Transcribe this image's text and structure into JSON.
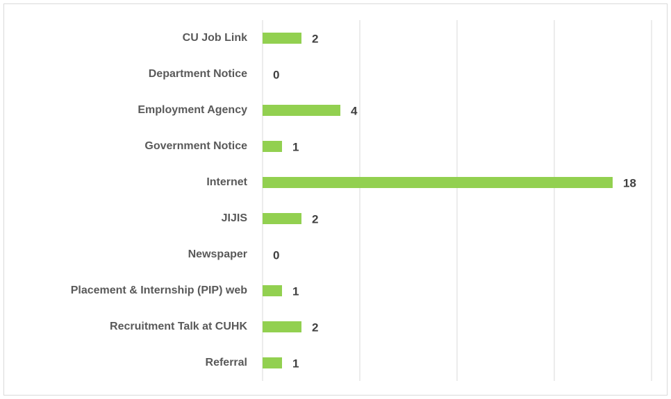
{
  "chart_data": {
    "type": "bar",
    "orientation": "horizontal",
    "categories": [
      "CU Job Link",
      "Department Notice",
      "Employment Agency",
      "Government Notice",
      "Internet",
      "JIJIS",
      "Newspaper",
      "Placement & Internship (PIP) web",
      "Recruitment Talk at CUHK",
      "Referral"
    ],
    "values": [
      2,
      0,
      4,
      1,
      18,
      2,
      0,
      1,
      2,
      1
    ],
    "color": "#92d050",
    "xlim": [
      0,
      20
    ],
    "xticks": [
      0,
      5,
      10,
      15,
      20
    ],
    "grid": true
  }
}
